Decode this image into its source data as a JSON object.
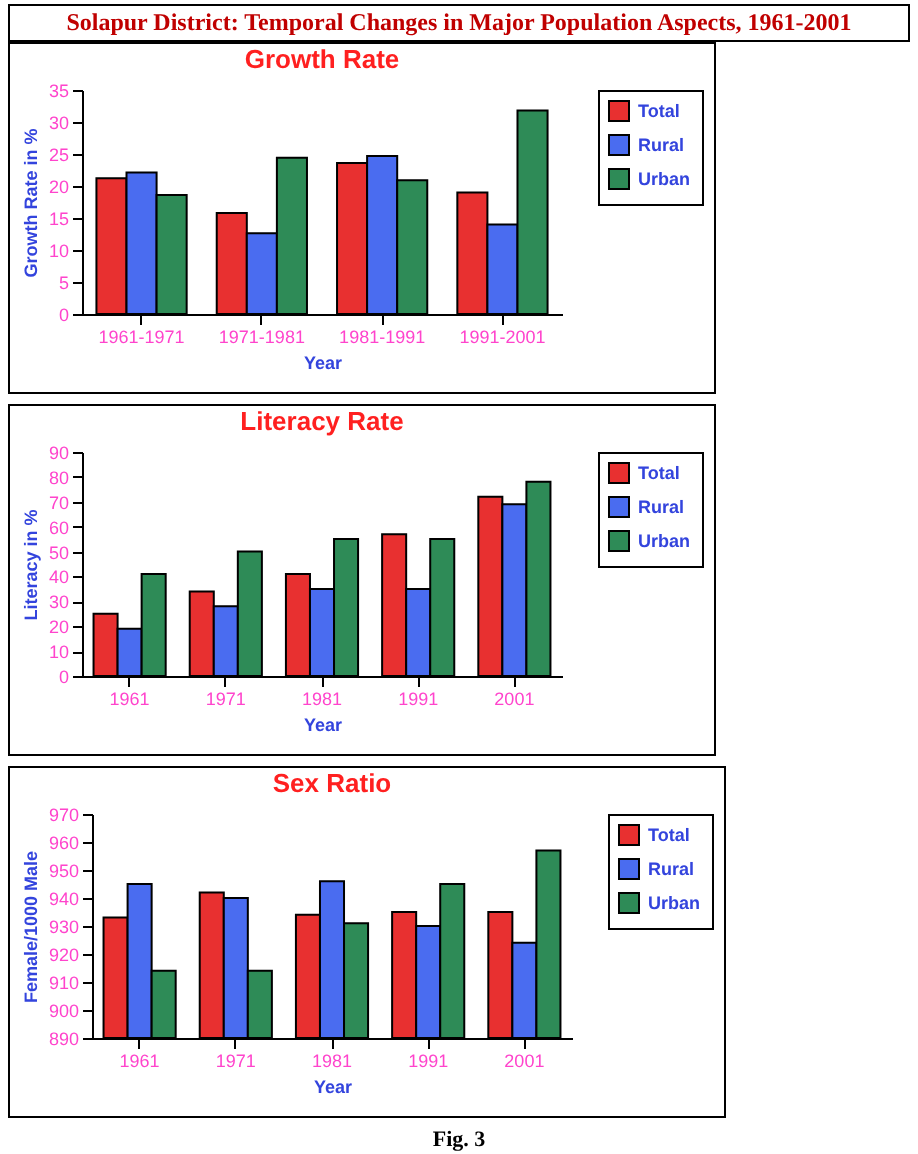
{
  "chart_data": [
    {
      "type": "bar",
      "title": "Growth Rate",
      "annotations": [
        "Solapur District: Temporal Changes in Major Population Aspects, 1961-2001"
      ],
      "xlabel": "Year",
      "ylabel": "Growth Rate in %",
      "categories": [
        "1961-1971",
        "1971-1981",
        "1981-1991",
        "1991-2001"
      ],
      "series": [
        {
          "name": "Total",
          "color": "#e83030",
          "values": [
            21.2,
            15.8,
            23.6,
            19
          ]
        },
        {
          "name": "Rural",
          "color": "#4a6cf0",
          "values": [
            22.1,
            12.6,
            24.7,
            14
          ]
        },
        {
          "name": "Urban",
          "color": "#2e8b57",
          "values": [
            18.6,
            24.4,
            20.9,
            31.8
          ]
        }
      ],
      "ylim": [
        0,
        35
      ],
      "yticks": [
        0,
        5,
        10,
        15,
        20,
        25,
        30,
        35
      ],
      "legend": "right",
      "grid": false
    },
    {
      "type": "bar",
      "title": "Literacy Rate",
      "xlabel": "Year",
      "ylabel": "Literacy in %",
      "categories": [
        "1961",
        "1971",
        "1981",
        "1991",
        "2001"
      ],
      "series": [
        {
          "name": "Total",
          "color": "#e83030",
          "values": [
            25,
            34,
            41,
            57,
            72
          ]
        },
        {
          "name": "Rural",
          "color": "#4a6cf0",
          "values": [
            19,
            28,
            35,
            35,
            69
          ]
        },
        {
          "name": "Urban",
          "color": "#2e8b57",
          "values": [
            41,
            50,
            55,
            55,
            78
          ]
        }
      ],
      "ylim": [
        0,
        90
      ],
      "yticks": [
        0,
        10,
        20,
        30,
        40,
        50,
        60,
        70,
        80,
        90
      ],
      "legend": "right",
      "grid": false
    },
    {
      "type": "bar",
      "title": "Sex Ratio",
      "annotations": [
        "Fig. 3"
      ],
      "xlabel": "Year",
      "ylabel": "Female/1000 Male",
      "categories": [
        "1961",
        "1971",
        "1981",
        "1991",
        "2001"
      ],
      "series": [
        {
          "name": "Total",
          "color": "#e83030",
          "values": [
            933,
            942,
            934,
            935,
            935
          ]
        },
        {
          "name": "Rural",
          "color": "#4a6cf0",
          "values": [
            945,
            940,
            946,
            930,
            924
          ]
        },
        {
          "name": "Urban",
          "color": "#2e8b57",
          "values": [
            914,
            914,
            931,
            945,
            957
          ]
        }
      ],
      "ylim": [
        890,
        970
      ],
      "yticks": [
        890,
        900,
        910,
        920,
        930,
        940,
        950,
        960,
        970
      ],
      "legend": "right",
      "grid": false
    }
  ]
}
